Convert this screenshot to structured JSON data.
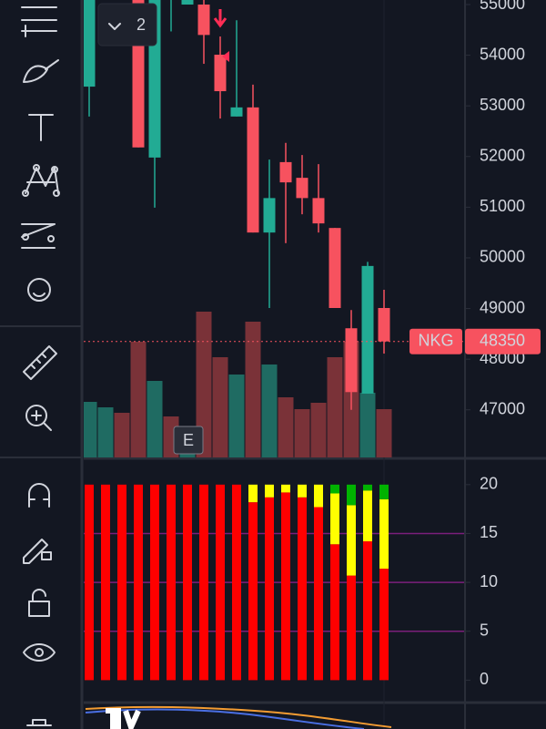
{
  "toolbar_badge": "2",
  "event_marker": "E",
  "price_label": {
    "symbol": "NKG",
    "value": 48350
  },
  "chart_data": [
    {
      "type": "candlestick",
      "open": [
        53380,
        null,
        null,
        55200,
        51980,
        55200,
        55000,
        55000,
        54010,
        52790,
        52970,
        50500,
        51890,
        51580,
        51180,
        50590,
        48610,
        47320,
        49010
      ],
      "high": [
        55300,
        null,
        null,
        55300,
        55300,
        55400,
        55300,
        55100,
        54370,
        54690,
        53420,
        51940,
        52270,
        52030,
        51850,
        50590,
        48970,
        49920,
        49370
      ],
      "low": [
        52790,
        null,
        null,
        52180,
        50990,
        54470,
        55000,
        53830,
        52750,
        52790,
        50500,
        49010,
        50290,
        50860,
        50500,
        49010,
        47000,
        47320,
        48110
      ],
      "close": [
        55200,
        null,
        null,
        52180,
        55200,
        55300,
        55200,
        54400,
        53290,
        52970,
        50500,
        51180,
        51490,
        51180,
        50680,
        49010,
        47350,
        49840,
        48350
      ],
      "color_up": "#22ab94",
      "color_down": "#f7525f",
      "ylim": [
        46060,
        55090
      ],
      "yticks": [
        47000,
        48000,
        49000,
        50000,
        51000,
        52000,
        53000,
        54000,
        55000
      ]
    },
    {
      "type": "volume",
      "values": [
        61,
        55,
        49,
        127,
        84,
        45,
        22,
        160,
        110,
        91,
        149,
        102,
        66,
        53,
        60,
        110,
        127,
        71,
        53
      ],
      "colors": [
        "#1f6b62",
        "#1f6b62",
        "#7a3238",
        "#7a3238",
        "#1f6b62",
        "#7a3238",
        "#1f6b62",
        "#7a3238",
        "#7a3238",
        "#1f6b62",
        "#7a3238",
        "#1f6b62",
        "#7a3238",
        "#7a3238",
        "#7a3238",
        "#7a3238",
        "#7a3238",
        "#1f6b62",
        "#7a3238"
      ]
    },
    {
      "type": "stacked_bar",
      "series": [
        {
          "color": "#ff0000",
          "values": [
            20,
            20,
            20,
            20,
            20,
            20,
            20,
            20,
            20,
            20,
            18.2,
            18.7,
            19.2,
            18.7,
            17.7,
            13.9,
            10.7,
            14.2,
            11.4
          ]
        },
        {
          "color": "#ffff00",
          "values": [
            0,
            0,
            0,
            0,
            0,
            0,
            0,
            0,
            0,
            0,
            1.8,
            1.3,
            0.8,
            1.3,
            2.3,
            5.2,
            7.2,
            5.2,
            7.1
          ]
        },
        {
          "color": "#00b300",
          "values": [
            0,
            0,
            0,
            0,
            0,
            0,
            0,
            0,
            0,
            0,
            0,
            0,
            0,
            0,
            0,
            0.9,
            2.1,
            0.6,
            1.5
          ]
        }
      ],
      "ylim": [
        -2.2,
        22.5
      ],
      "yticks": [
        0,
        5,
        10,
        15,
        20
      ],
      "grid_color": "#7b1f7b"
    }
  ]
}
